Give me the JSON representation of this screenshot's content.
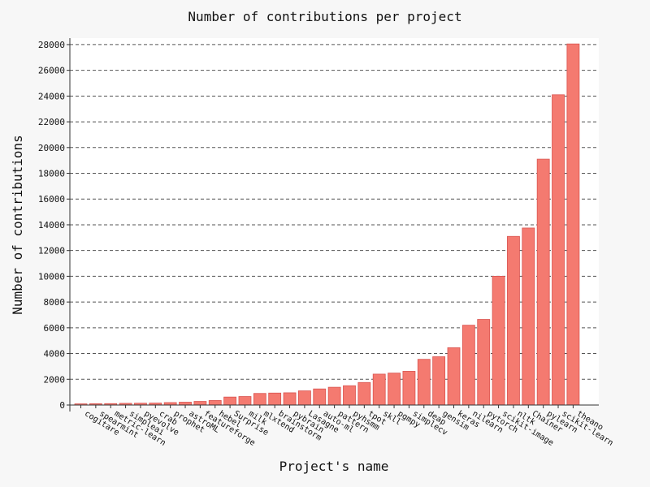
{
  "chart_data": {
    "type": "bar",
    "title": "Number of contributions per project",
    "xlabel": "Project's name",
    "ylabel": "Number of contributions",
    "ylim": [
      0,
      28500
    ],
    "yticks": [
      0,
      2000,
      4000,
      6000,
      8000,
      10000,
      12000,
      14000,
      16000,
      18000,
      20000,
      22000,
      24000,
      26000,
      28000
    ],
    "grid": true,
    "bar_color": "#f47a70",
    "bar_edge": "#d9534f",
    "categories": [
      "cogitare",
      "spearmint",
      "metric-learn",
      "simpleai",
      "pyevolve",
      "crab",
      "prophet",
      "astroML",
      "featureforge",
      "hebel",
      "Surprise",
      "milk",
      "mlxtend",
      "brainstorm",
      "pybrain",
      "Lasagne",
      "auto-ml",
      "pattern",
      "pyhsmm",
      "tpot",
      "skll",
      "pgmpy",
      "simplecv",
      "deap",
      "gensim",
      "keras",
      "nilearn",
      "pytorch",
      "scikit-image",
      "nltk",
      "Chainer",
      "pylearn",
      "scikit-learn",
      "theano"
    ],
    "values": [
      90,
      100,
      110,
      130,
      140,
      150,
      190,
      220,
      280,
      350,
      620,
      660,
      900,
      930,
      950,
      1100,
      1250,
      1380,
      1500,
      1750,
      2400,
      2480,
      2620,
      3550,
      3750,
      4450,
      6200,
      6650,
      10000,
      13100,
      13750,
      19100,
      24100,
      28050
    ]
  }
}
